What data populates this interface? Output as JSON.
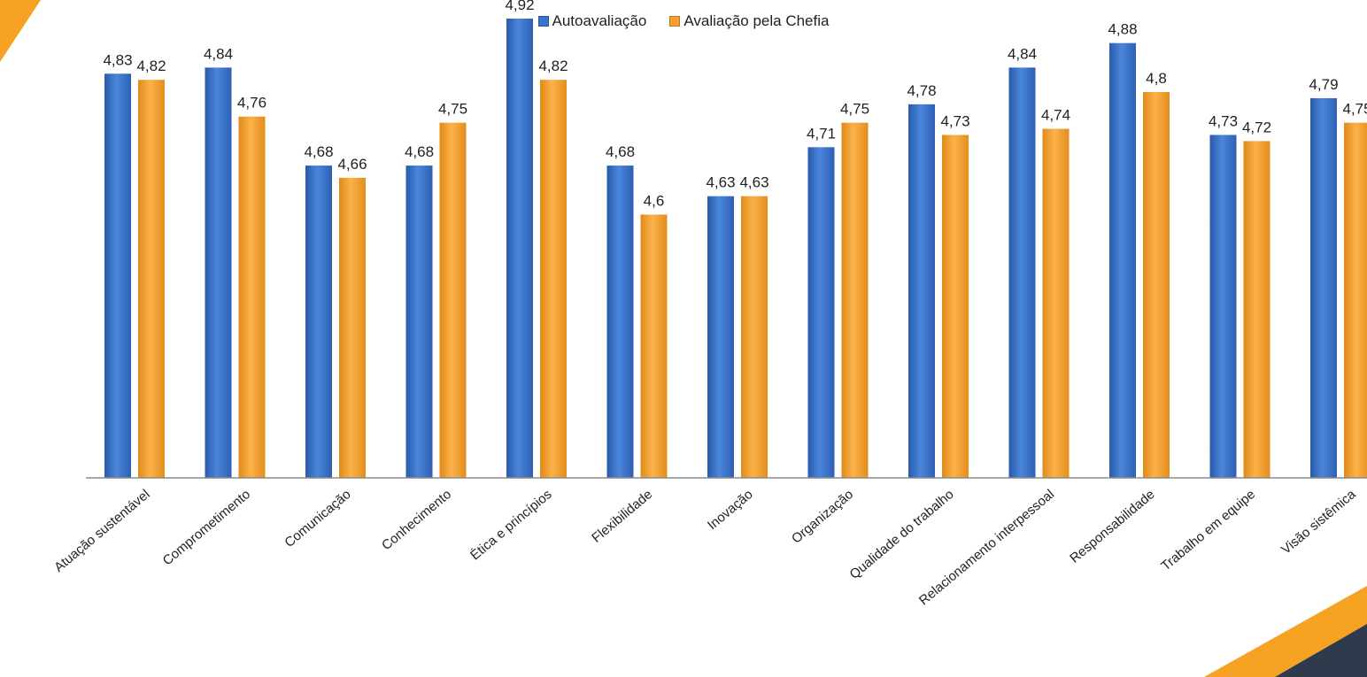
{
  "legend": {
    "series_a": "Autoavaliação",
    "series_b": "Avaliação pela Chefia"
  },
  "colors": {
    "series_a": "#3b73c9",
    "series_b": "#f5a030",
    "accent_orange": "#f6a323",
    "accent_dark": "#2f3b4c"
  },
  "chart_data": {
    "type": "bar",
    "title": "",
    "xlabel": "",
    "ylabel": "",
    "ylim": [
      4.17,
      4.95
    ],
    "categories": [
      "Atuação sustentável",
      "Comprometimento",
      "Comunicação",
      "Conhecimento",
      "Ética e princípios",
      "Flexibilidade",
      "Inovação",
      "Organização",
      "Qualidade do trabalho",
      "Relacionamento interpessoal",
      "Responsabilidade",
      "Trabalho em equipe",
      "Visão sistêmica"
    ],
    "series": [
      {
        "name": "Autoavaliação",
        "values": [
          4.83,
          4.84,
          4.68,
          4.68,
          4.92,
          4.68,
          4.63,
          4.71,
          4.78,
          4.84,
          4.88,
          4.73,
          4.79
        ],
        "labels": [
          "4,83",
          "4,84",
          "4,68",
          "4,68",
          "4,92",
          "4,68",
          "4,63",
          "4,71",
          "4,78",
          "4,84",
          "4,88",
          "4,73",
          "4,79"
        ]
      },
      {
        "name": "Avaliação pela Chefia",
        "values": [
          4.82,
          4.76,
          4.66,
          4.75,
          4.82,
          4.6,
          4.63,
          4.75,
          4.73,
          4.74,
          4.8,
          4.72,
          4.75
        ],
        "labels": [
          "4,82",
          "4,76",
          "4,66",
          "4,75",
          "4,82",
          "4,6",
          "4,63",
          "4,75",
          "4,73",
          "4,74",
          "4,8",
          "4,72",
          "4,75"
        ]
      }
    ],
    "legend_position": "top-center",
    "grid": false
  }
}
